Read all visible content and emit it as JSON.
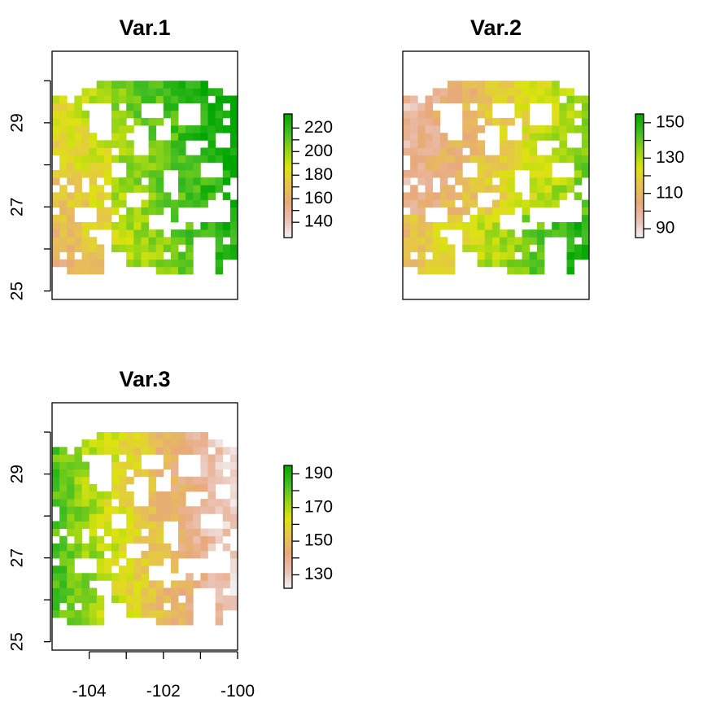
{
  "chart_data": {
    "type": "heatmap",
    "description_free": true,
    "panels": [
      {
        "title": "Var.1",
        "xlim": [
          -105,
          -100
        ],
        "ylim": [
          24.8,
          30.7
        ],
        "show_x_axis": false,
        "y_ticks": [
          25,
          26,
          27,
          28,
          29,
          30
        ],
        "y_tick_labels": [
          "25",
          "",
          "27",
          "",
          "29",
          ""
        ],
        "legend": {
          "min": 127,
          "max": 232,
          "ticks": [
            140,
            160,
            180,
            200,
            220
          ]
        },
        "pattern": "var1"
      },
      {
        "title": "Var.2",
        "xlim": [
          -105,
          -100
        ],
        "ylim": [
          24.8,
          30.7
        ],
        "show_x_axis": false,
        "show_y_axis": false,
        "legend": {
          "min": 85,
          "max": 155,
          "ticks": [
            90,
            110,
            130,
            150
          ]
        },
        "pattern": "var2"
      },
      {
        "title": "Var.3",
        "xlim": [
          -105,
          -100
        ],
        "ylim": [
          24.8,
          30.7
        ],
        "show_x_axis": true,
        "x_ticks": [
          -104,
          -103,
          -102,
          -101,
          -100
        ],
        "x_tick_labels": [
          "-104",
          "",
          "-102",
          "",
          "-100"
        ],
        "y_ticks": [
          25,
          26,
          27,
          28,
          29,
          30
        ],
        "y_tick_labels": [
          "25",
          "",
          "27",
          "",
          "29",
          ""
        ],
        "legend": {
          "min": 122,
          "max": 195,
          "ticks": [
            130,
            150,
            170,
            190
          ]
        },
        "pattern": "var3"
      }
    ],
    "grid": {
      "cols": 25,
      "rows": 26,
      "x_start": -105,
      "x_end": -100,
      "y_start": 25.4,
      "y_end": 30.0
    },
    "colormap": [
      "#f2f2f2",
      "#eac0b0",
      "#e8a97a",
      "#e6c44e",
      "#dce30f",
      "#8fd316",
      "#3fbd23",
      "#00a600"
    ]
  }
}
